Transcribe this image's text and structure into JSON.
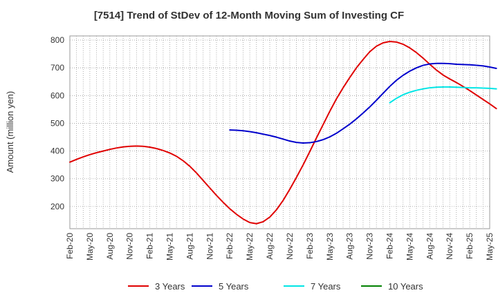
{
  "chart_data": {
    "type": "line",
    "title": "[7514]  Trend of StDev of 12-Month Moving Sum of Investing CF",
    "xlabel": "",
    "ylabel": "Amount (million yen)",
    "ylim": [
      120,
      815
    ],
    "y_ticks": [
      200,
      300,
      400,
      500,
      600,
      700,
      800
    ],
    "grid": true,
    "legend_position": "bottom",
    "x_tick_labels": [
      "Feb-20",
      "May-20",
      "Aug-20",
      "Nov-20",
      "Feb-21",
      "May-21",
      "Aug-21",
      "Nov-21",
      "Feb-22",
      "May-22",
      "Aug-22",
      "Nov-22",
      "Feb-23",
      "May-23",
      "Aug-23",
      "Nov-23",
      "Feb-24",
      "May-24",
      "Aug-24",
      "Nov-24",
      "Feb-25",
      "May-25"
    ],
    "series": [
      {
        "name": "3 Years",
        "color": "#e00000",
        "points": [
          [
            "Feb-20",
            360
          ],
          [
            "Mar-20",
            370
          ],
          [
            "Apr-20",
            379
          ],
          [
            "May-20",
            387
          ],
          [
            "Jun-20",
            394
          ],
          [
            "Jul-20",
            400
          ],
          [
            "Aug-20",
            406
          ],
          [
            "Sep-20",
            411
          ],
          [
            "Oct-20",
            415
          ],
          [
            "Nov-20",
            417
          ],
          [
            "Dec-20",
            418
          ],
          [
            "Jan-21",
            417
          ],
          [
            "Feb-21",
            414
          ],
          [
            "Mar-21",
            409
          ],
          [
            "Apr-21",
            402
          ],
          [
            "May-21",
            393
          ],
          [
            "Jun-21",
            381
          ],
          [
            "Jul-21",
            365
          ],
          [
            "Aug-21",
            345
          ],
          [
            "Sep-21",
            321
          ],
          [
            "Oct-21",
            294
          ],
          [
            "Nov-21",
            267
          ],
          [
            "Dec-21",
            240
          ],
          [
            "Jan-22",
            215
          ],
          [
            "Feb-22",
            192
          ],
          [
            "Mar-22",
            172
          ],
          [
            "Apr-22",
            155
          ],
          [
            "May-22",
            142
          ],
          [
            "Jun-22",
            138
          ],
          [
            "Jul-22",
            145
          ],
          [
            "Aug-22",
            162
          ],
          [
            "Sep-22",
            188
          ],
          [
            "Oct-22",
            222
          ],
          [
            "Nov-22",
            262
          ],
          [
            "Dec-22",
            305
          ],
          [
            "Jan-23",
            350
          ],
          [
            "Feb-23",
            398
          ],
          [
            "Mar-23",
            447
          ],
          [
            "Apr-23",
            495
          ],
          [
            "May-23",
            543
          ],
          [
            "Jun-23",
            588
          ],
          [
            "Jul-23",
            628
          ],
          [
            "Aug-23",
            665
          ],
          [
            "Sep-23",
            700
          ],
          [
            "Oct-23",
            730
          ],
          [
            "Nov-23",
            758
          ],
          [
            "Dec-23",
            778
          ],
          [
            "Jan-24",
            790
          ],
          [
            "Feb-24",
            795
          ],
          [
            "Mar-24",
            793
          ],
          [
            "Apr-24",
            785
          ],
          [
            "May-24",
            772
          ],
          [
            "Jun-24",
            755
          ],
          [
            "Jul-24",
            735
          ],
          [
            "Aug-24",
            713
          ],
          [
            "Sep-24",
            692
          ],
          [
            "Oct-24",
            674
          ],
          [
            "Nov-24",
            660
          ],
          [
            "Dec-24",
            647
          ],
          [
            "Jan-25",
            633
          ],
          [
            "Feb-25",
            618
          ],
          [
            "Mar-25",
            602
          ],
          [
            "Apr-25",
            586
          ],
          [
            "May-25",
            570
          ],
          [
            "Jun-25",
            553
          ]
        ]
      },
      {
        "name": "5 Years",
        "color": "#0000cc",
        "points": [
          [
            "Feb-22",
            476
          ],
          [
            "Mar-22",
            475
          ],
          [
            "Apr-22",
            473
          ],
          [
            "May-22",
            470
          ],
          [
            "Jun-22",
            466
          ],
          [
            "Jul-22",
            461
          ],
          [
            "Aug-22",
            456
          ],
          [
            "Sep-22",
            450
          ],
          [
            "Oct-22",
            443
          ],
          [
            "Nov-22",
            436
          ],
          [
            "Dec-22",
            431
          ],
          [
            "Jan-23",
            429
          ],
          [
            "Feb-23",
            430
          ],
          [
            "Mar-23",
            434
          ],
          [
            "Apr-23",
            441
          ],
          [
            "May-23",
            451
          ],
          [
            "Jun-23",
            464
          ],
          [
            "Jul-23",
            480
          ],
          [
            "Aug-23",
            497
          ],
          [
            "Sep-23",
            516
          ],
          [
            "Oct-23",
            537
          ],
          [
            "Nov-23",
            559
          ],
          [
            "Dec-23",
            583
          ],
          [
            "Jan-24",
            608
          ],
          [
            "Feb-24",
            633
          ],
          [
            "Mar-24",
            655
          ],
          [
            "Apr-24",
            673
          ],
          [
            "May-24",
            688
          ],
          [
            "Jun-24",
            700
          ],
          [
            "Jul-24",
            709
          ],
          [
            "Aug-24",
            714
          ],
          [
            "Sep-24",
            716
          ],
          [
            "Oct-24",
            716
          ],
          [
            "Nov-24",
            715
          ],
          [
            "Dec-24",
            713
          ],
          [
            "Jan-25",
            712
          ],
          [
            "Feb-25",
            711
          ],
          [
            "Mar-25",
            709
          ],
          [
            "Apr-25",
            707
          ],
          [
            "May-25",
            703
          ],
          [
            "Jun-25",
            698
          ]
        ]
      },
      {
        "name": "7 Years",
        "color": "#00e5e5",
        "points": [
          [
            "Feb-24",
            574
          ],
          [
            "Mar-24",
            590
          ],
          [
            "Apr-24",
            603
          ],
          [
            "May-24",
            612
          ],
          [
            "Jun-24",
            619
          ],
          [
            "Jul-24",
            624
          ],
          [
            "Aug-24",
            628
          ],
          [
            "Sep-24",
            630
          ],
          [
            "Oct-24",
            631
          ],
          [
            "Nov-24",
            631
          ],
          [
            "Dec-24",
            630
          ],
          [
            "Jan-25",
            629
          ],
          [
            "Feb-25",
            628
          ],
          [
            "Mar-25",
            628
          ],
          [
            "Apr-25",
            627
          ],
          [
            "May-25",
            626
          ],
          [
            "Jun-25",
            624
          ]
        ]
      },
      {
        "name": "10 Years",
        "color": "#008000",
        "points": []
      }
    ]
  }
}
